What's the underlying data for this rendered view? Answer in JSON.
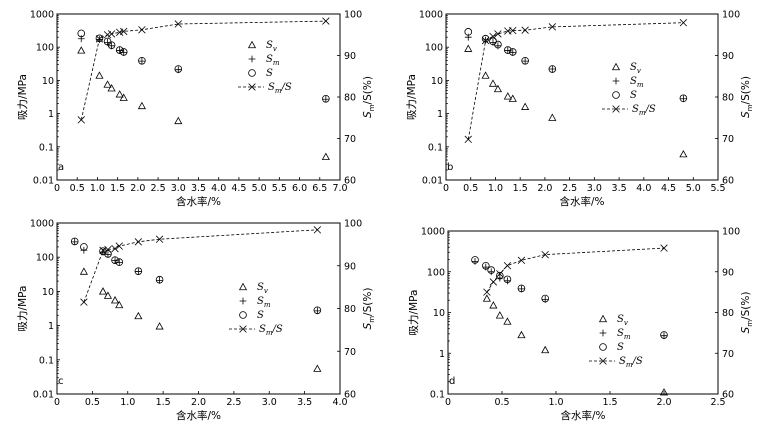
{
  "labels": {
    "xlabel": "含水率/%",
    "ylabel_left": "吸力/MPa",
    "ylabel_right": "S_m/S(%)"
  },
  "legend": {
    "sv": {
      "main": "S",
      "sub": "v"
    },
    "sm": {
      "main": "S",
      "sub": "m"
    },
    "s": {
      "main": "S",
      "sub": ""
    },
    "ratio": {
      "main": "S",
      "sub": "m",
      "suffix": "/S"
    }
  },
  "chart_data": [
    {
      "type": "scatter",
      "panel": "a",
      "xlabel": "含水率/%",
      "ylabel": "吸力/MPa",
      "ylabel_right": "S_m/S(%)",
      "xlim": [
        0,
        7.0
      ],
      "xticks": [
        0,
        0.5,
        1.0,
        1.5,
        2.0,
        2.5,
        3.0,
        3.5,
        4.0,
        4.5,
        5.0,
        5.5,
        6.0,
        6.5,
        7.0
      ],
      "xtick_labels": [
        "0",
        "0.5",
        "1.0",
        "1.5",
        "2.0",
        "2.5",
        "3.0",
        "3.5",
        "4.0",
        "4.5",
        "5.0",
        "5.5",
        "6.0",
        "6.5",
        "7.0"
      ],
      "ylim": [
        0.01,
        1000
      ],
      "yscale": "log",
      "yticks": [
        0.01,
        0.1,
        1,
        10,
        100,
        1000
      ],
      "ytick_labels": [
        "0.01",
        "0.1",
        "1",
        "10",
        "100",
        "1000"
      ],
      "y2lim": [
        60,
        100
      ],
      "y2ticks": [
        60,
        70,
        80,
        90,
        100
      ],
      "y2tick_labels": [
        "60",
        "70",
        "80",
        "90",
        "100"
      ],
      "legend_position": "right",
      "series": [
        {
          "name": "Sv",
          "marker": "triangle",
          "axis": "left",
          "x": [
            0.6,
            1.05,
            1.25,
            1.35,
            1.55,
            1.65,
            2.1,
            3.0,
            6.65
          ],
          "y": [
            80,
            14,
            7.5,
            5.8,
            3.8,
            3.0,
            1.7,
            0.6,
            0.05
          ]
        },
        {
          "name": "Sm",
          "marker": "plus",
          "axis": "left",
          "x": [
            0.6,
            1.05,
            1.25,
            1.35,
            1.55,
            1.65,
            2.1,
            3.0,
            6.65
          ],
          "y": [
            180,
            170,
            140,
            110,
            80,
            70,
            38,
            21,
            2.7
          ]
        },
        {
          "name": "S",
          "marker": "circle",
          "axis": "left",
          "x": [
            0.6,
            1.05,
            1.25,
            1.35,
            1.55,
            1.65,
            2.1,
            3.0,
            6.65
          ],
          "y": [
            260,
            185,
            148,
            115,
            82,
            72,
            39,
            22,
            2.8
          ]
        },
        {
          "name": "Sm/S",
          "marker": "x",
          "axis": "right",
          "line": "dashed",
          "x": [
            0.6,
            1.05,
            1.25,
            1.35,
            1.55,
            1.65,
            2.1,
            3.0,
            6.65
          ],
          "y": [
            74.5,
            94,
            95,
            95.2,
            95.6,
            95.8,
            96.2,
            97.6,
            98.3
          ]
        }
      ]
    },
    {
      "type": "scatter",
      "panel": "b",
      "xlabel": "含水率/%",
      "ylabel": "吸力/MPa",
      "ylabel_right": "S_m/S(%)",
      "xlim": [
        0,
        5.5
      ],
      "xticks": [
        0,
        0.5,
        1.0,
        1.5,
        2.0,
        2.5,
        3.0,
        3.5,
        4.0,
        4.5,
        5.0,
        5.5
      ],
      "xtick_labels": [
        "0",
        "0.5",
        "1.0",
        "1.5",
        "2.0",
        "2.5",
        "3.0",
        "3.5",
        "4.0",
        "4.5",
        "5.0",
        "5.5"
      ],
      "ylim": [
        0.01,
        1000
      ],
      "yscale": "log",
      "yticks": [
        0.01,
        0.1,
        1,
        10,
        100,
        1000
      ],
      "ytick_labels": [
        "0.01",
        "0.1",
        "1",
        "10",
        "100",
        "1000"
      ],
      "y2lim": [
        60,
        100
      ],
      "y2ticks": [
        60,
        70,
        80,
        90,
        100
      ],
      "y2tick_labels": [
        "60",
        "70",
        "80",
        "90",
        "100"
      ],
      "legend_position": "right",
      "series": [
        {
          "name": "Sv",
          "marker": "triangle",
          "axis": "left",
          "x": [
            0.45,
            0.8,
            0.95,
            1.05,
            1.25,
            1.35,
            1.6,
            2.15,
            4.8
          ],
          "y": [
            90,
            14,
            8,
            5.5,
            3.3,
            2.8,
            1.6,
            0.75,
            0.06
          ]
        },
        {
          "name": "Sm",
          "marker": "plus",
          "axis": "left",
          "x": [
            0.45,
            0.8,
            0.95,
            1.05,
            1.25,
            1.35,
            1.6,
            2.15,
            4.8
          ],
          "y": [
            200,
            165,
            140,
            110,
            80,
            70,
            38,
            22,
            2.8
          ]
        },
        {
          "name": "S",
          "marker": "circle",
          "axis": "left",
          "x": [
            0.45,
            0.8,
            0.95,
            1.05,
            1.25,
            1.35,
            1.6,
            2.15,
            4.8
          ],
          "y": [
            290,
            180,
            150,
            120,
            82,
            72,
            39,
            22,
            2.9
          ]
        },
        {
          "name": "Sm/S",
          "marker": "x",
          "axis": "right",
          "line": "dashed",
          "x": [
            0.45,
            0.8,
            0.95,
            1.05,
            1.25,
            1.35,
            1.6,
            2.15,
            4.8
          ],
          "y": [
            69.8,
            93.6,
            94.6,
            95.2,
            95.9,
            96.0,
            96.1,
            96.9,
            97.9
          ]
        }
      ]
    },
    {
      "type": "scatter",
      "panel": "c",
      "xlabel": "含水率/%",
      "ylabel": "吸力/MPa",
      "ylabel_right": "S_m/S(%)",
      "xlim": [
        0,
        4.0
      ],
      "xticks": [
        0,
        0.5,
        1.0,
        1.5,
        2.0,
        2.5,
        3.0,
        3.5,
        4.0
      ],
      "xtick_labels": [
        "0",
        "0.5",
        "1.0",
        "1.5",
        "2.0",
        "2.5",
        "3.0",
        "3.5",
        "4.0"
      ],
      "ylim": [
        0.01,
        1000
      ],
      "yscale": "log",
      "yticks": [
        0.01,
        0.1,
        1,
        10,
        100,
        1000
      ],
      "ytick_labels": [
        "0.01",
        "0.1",
        "1",
        "10",
        "100",
        "1000"
      ],
      "y2lim": [
        60,
        100
      ],
      "y2ticks": [
        60,
        70,
        80,
        90,
        100
      ],
      "y2tick_labels": [
        "60",
        "70",
        "80",
        "90",
        "100"
      ],
      "legend_position": "right",
      "series": [
        {
          "name": "Sv",
          "marker": "triangle",
          "axis": "left",
          "x": [
            0.38,
            0.65,
            0.72,
            0.82,
            0.88,
            1.15,
            1.45,
            3.68
          ],
          "y": [
            38,
            10,
            7.5,
            5.5,
            4,
            1.9,
            0.95,
            0.055
          ]
        },
        {
          "name": "Sm",
          "marker": "plus",
          "axis": "left",
          "x": [
            0.25,
            0.38,
            0.65,
            0.72,
            0.82,
            0.88,
            1.15,
            1.45,
            3.68
          ],
          "y": [
            280,
            160,
            140,
            120,
            80,
            70,
            38,
            21,
            2.7
          ]
        },
        {
          "name": "S",
          "marker": "circle",
          "axis": "left",
          "x": [
            0.25,
            0.38,
            0.65,
            0.72,
            0.82,
            0.88,
            1.15,
            1.45,
            3.68
          ],
          "y": [
            290,
            200,
            150,
            125,
            82,
            72,
            39,
            22,
            2.8
          ]
        },
        {
          "name": "Sm/S",
          "marker": "x",
          "axis": "right",
          "line": "dashed",
          "x": [
            0.38,
            0.65,
            0.72,
            0.82,
            0.88,
            1.15,
            1.45,
            3.68
          ],
          "y": [
            81.5,
            93.6,
            93.8,
            94.0,
            94.6,
            95.6,
            96.2,
            98.4
          ]
        }
      ]
    },
    {
      "type": "scatter",
      "panel": "d",
      "xlabel": "含水率/%",
      "ylabel": "吸力/MPa",
      "ylabel_right": "S_m/S(%)",
      "xlim": [
        0,
        2.5
      ],
      "xticks": [
        0,
        0.5,
        1.0,
        1.5,
        2.0,
        2.5
      ],
      "xtick_labels": [
        "0",
        "0.5",
        "1.0",
        "1.5",
        "2.0",
        "2.5"
      ],
      "ylim": [
        0.1,
        1000
      ],
      "yscale": "log",
      "yticks": [
        0.1,
        1,
        10,
        100,
        1000
      ],
      "ytick_labels": [
        "0.1",
        "1",
        "10",
        "100",
        "1000"
      ],
      "y2lim": [
        60,
        100
      ],
      "y2ticks": [
        60,
        70,
        80,
        90,
        100
      ],
      "y2tick_labels": [
        "60",
        "70",
        "80",
        "90",
        "100"
      ],
      "legend_position": "right",
      "series": [
        {
          "name": "Sv",
          "marker": "triangle",
          "axis": "left",
          "x": [
            0.36,
            0.42,
            0.48,
            0.55,
            0.68,
            0.9,
            2.0
          ],
          "y": [
            22,
            15,
            8.5,
            6,
            2.8,
            1.2,
            0.11
          ]
        },
        {
          "name": "Sm",
          "marker": "plus",
          "axis": "left",
          "x": [
            0.25,
            0.35,
            0.4,
            0.48,
            0.55,
            0.68,
            0.9,
            2.0
          ],
          "y": [
            180,
            130,
            100,
            70,
            60,
            38,
            21,
            2.7
          ]
        },
        {
          "name": "S",
          "marker": "circle",
          "axis": "left",
          "x": [
            0.25,
            0.35,
            0.4,
            0.48,
            0.55,
            0.68,
            0.9,
            2.0
          ],
          "y": [
            195,
            140,
            110,
            80,
            65,
            39,
            22,
            2.8
          ]
        },
        {
          "name": "Sm/S",
          "marker": "x",
          "axis": "right",
          "line": "dashed",
          "x": [
            0.36,
            0.42,
            0.48,
            0.55,
            0.68,
            0.9,
            2.0
          ],
          "y": [
            85.0,
            87.5,
            89.5,
            91.5,
            92.8,
            94.2,
            95.8
          ]
        }
      ]
    }
  ]
}
